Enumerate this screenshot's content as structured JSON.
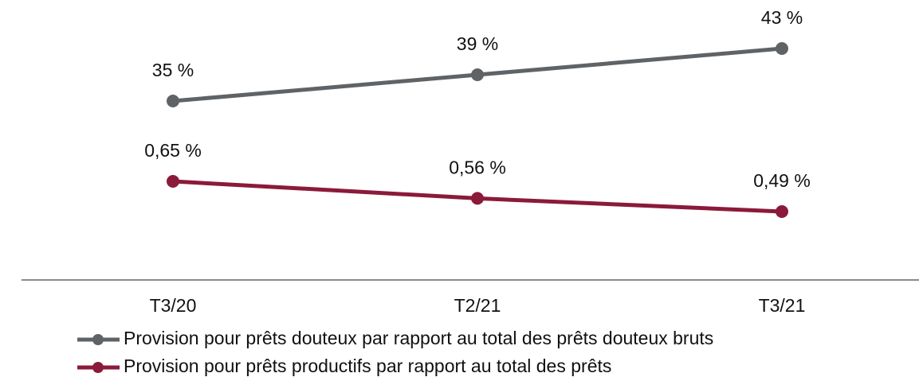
{
  "chart_data": {
    "type": "line",
    "categories": [
      "T3/20",
      "T2/21",
      "T3/21"
    ],
    "series": [
      {
        "name": "Provision pour prêts douteux par rapport au total des prêts douteux bruts",
        "color": "#5f6366",
        "values": [
          35,
          39,
          43
        ],
        "value_labels": [
          "35 %",
          "39 %",
          "43 %"
        ]
      },
      {
        "name": "Provision pour prêts productifs par rapport au total des prêts",
        "color": "#8b1a3a",
        "axis": "y2",
        "values": [
          0.65,
          0.56,
          0.49
        ],
        "value_labels": [
          "0,65 %",
          "0,56 %",
          "0,49 %"
        ]
      }
    ]
  }
}
